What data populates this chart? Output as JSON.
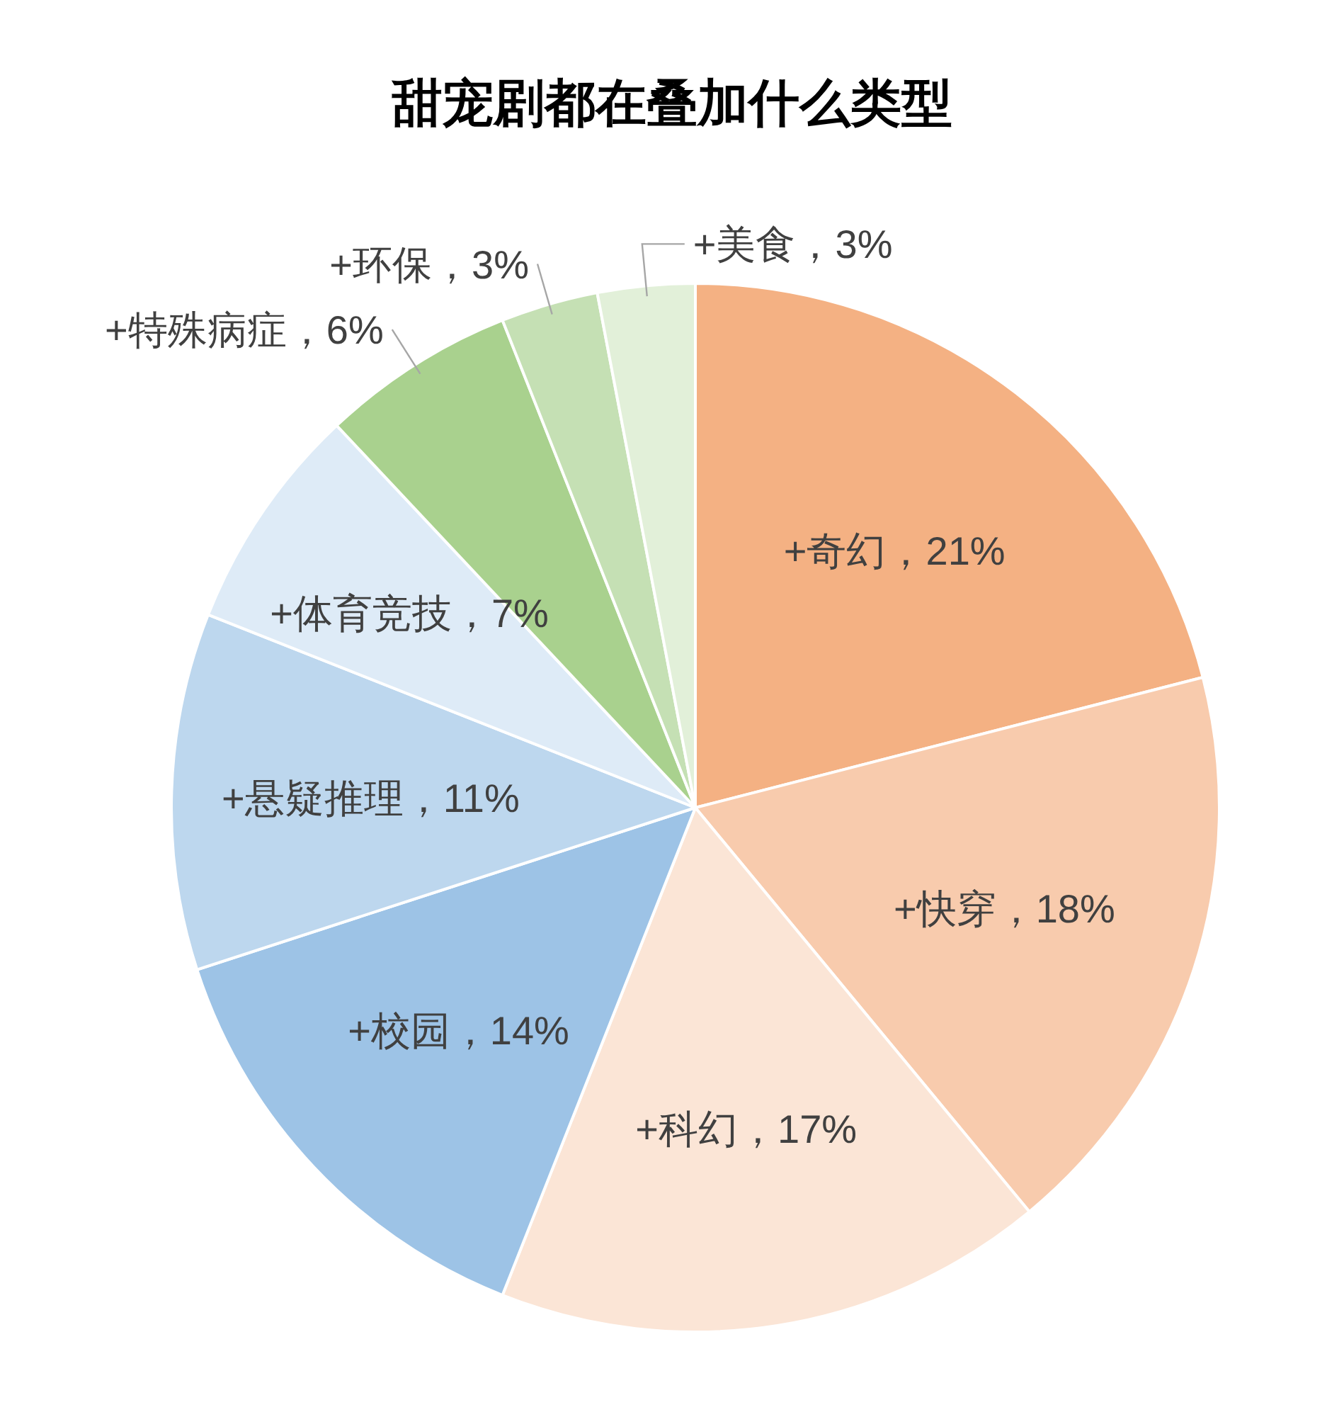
{
  "chart_data": {
    "type": "pie",
    "title": "甜宠剧都在叠加什么类型",
    "categories": [
      "+奇幻",
      "+快穿",
      "+科幻",
      "+校园",
      "+悬疑推理",
      "+体育竞技",
      "+特殊病症",
      "+环保",
      "+美食"
    ],
    "values": [
      21,
      18,
      17,
      14,
      11,
      7,
      6,
      3,
      3
    ],
    "colors": [
      "#f4b183",
      "#f8cbad",
      "#fbe5d6",
      "#9dc3e6",
      "#bdd7ee",
      "#deebf7",
      "#a9d18e",
      "#c5e0b4",
      "#e2f0d9"
    ],
    "value_labels": [
      "21%",
      "18%",
      "17%",
      "14%",
      "11%",
      "7%",
      "6%",
      "3%",
      "3%"
    ]
  }
}
